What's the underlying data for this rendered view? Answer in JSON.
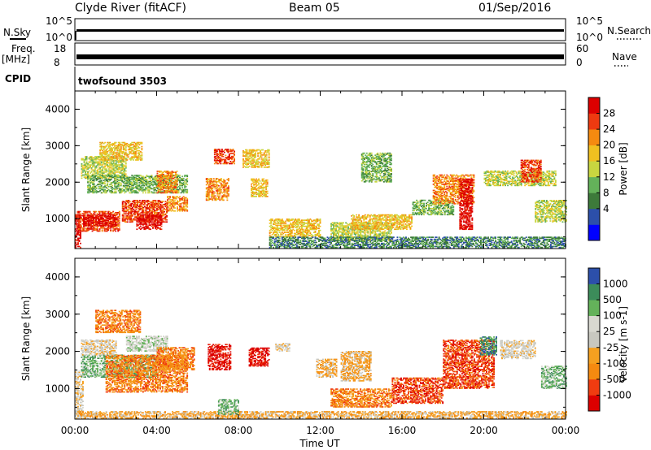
{
  "header": {
    "station": "Clyde River (fitACF)",
    "beam": "Beam 05",
    "date": "01/Sep/2016"
  },
  "top_strips": {
    "nsky_label": "N.Sky",
    "nsky_ticks": [
      "10^5",
      "10^0"
    ],
    "nsearch_label": "N.Search",
    "nsearch_ticks": [
      "10^5",
      "10^0"
    ],
    "freq_label": "Freq.",
    "freq_unit": "[MHz]",
    "freq_ticks": [
      "18",
      "8"
    ],
    "nave_label": "Nave",
    "nave_ticks": [
      "60",
      "0"
    ],
    "cpid_label": "CPID",
    "cpid_value": "twofsound 3503"
  },
  "colors": {
    "frame": "#000000",
    "trace": "#000000"
  },
  "chart_data": [
    {
      "type": "heatmap",
      "name": "power",
      "ylabel": "Slant Range [km]",
      "ylim": [
        180,
        4500
      ],
      "yticks": [
        1000,
        2000,
        3000,
        4000
      ],
      "xlim_hours": [
        0,
        24
      ],
      "colorbar": {
        "label": "Power [dB]",
        "ticks": [
          "28",
          "24",
          "20",
          "16",
          "12",
          "8",
          "4"
        ],
        "colors": [
          "#0000ff",
          "#2c4faa",
          "#3d7a3a",
          "#64b25a",
          "#c8d640",
          "#f0c020",
          "#f58a10",
          "#ee3a10",
          "#dc0000"
        ]
      },
      "regions": [
        {
          "t0": 0.0,
          "t1": 0.3,
          "r0": 200,
          "r1": 1100,
          "c": 8
        },
        {
          "t0": 0.1,
          "t1": 2.2,
          "r0": 650,
          "r1": 1200,
          "c": 7
        },
        {
          "t0": 0.4,
          "t1": 2.0,
          "r0": 800,
          "r1": 1100,
          "c": 8
        },
        {
          "t0": 2.3,
          "t1": 4.5,
          "r0": 900,
          "r1": 1500,
          "c": 7
        },
        {
          "t0": 3.0,
          "t1": 4.2,
          "r0": 700,
          "r1": 1100,
          "c": 8
        },
        {
          "t0": 4.5,
          "t1": 5.5,
          "r0": 1200,
          "r1": 1600,
          "c": 6
        },
        {
          "t0": 0.3,
          "t1": 2.5,
          "r0": 2100,
          "r1": 2700,
          "c": 4
        },
        {
          "t0": 1.2,
          "t1": 3.3,
          "r0": 2600,
          "r1": 3100,
          "c": 5
        },
        {
          "t0": 0.6,
          "t1": 5.5,
          "r0": 1700,
          "r1": 2200,
          "c": 3
        },
        {
          "t0": 4.0,
          "t1": 5.0,
          "r0": 1700,
          "r1": 2300,
          "c": 6
        },
        {
          "t0": 6.8,
          "t1": 7.8,
          "r0": 2500,
          "r1": 2900,
          "c": 7
        },
        {
          "t0": 6.4,
          "t1": 7.5,
          "r0": 1500,
          "r1": 2100,
          "c": 6
        },
        {
          "t0": 8.2,
          "t1": 9.5,
          "r0": 2400,
          "r1": 2900,
          "c": 5
        },
        {
          "t0": 8.6,
          "t1": 9.4,
          "r0": 1600,
          "r1": 2100,
          "c": 5
        },
        {
          "t0": 9.5,
          "t1": 12.0,
          "r0": 500,
          "r1": 1000,
          "c": 5
        },
        {
          "t0": 12.5,
          "t1": 15.5,
          "r0": 400,
          "r1": 900,
          "c": 4
        },
        {
          "t0": 13.5,
          "t1": 16.5,
          "r0": 700,
          "r1": 1100,
          "c": 5
        },
        {
          "t0": 16.5,
          "t1": 18.5,
          "r0": 1100,
          "r1": 1500,
          "c": 3
        },
        {
          "t0": 17.5,
          "t1": 19.5,
          "r0": 1400,
          "r1": 2200,
          "c": 6
        },
        {
          "t0": 18.8,
          "t1": 19.4,
          "r0": 700,
          "r1": 2100,
          "c": 8
        },
        {
          "t0": 20.0,
          "t1": 23.5,
          "r0": 1900,
          "r1": 2300,
          "c": 4
        },
        {
          "t0": 21.8,
          "t1": 22.8,
          "r0": 2000,
          "r1": 2600,
          "c": 7
        },
        {
          "t0": 22.5,
          "t1": 24.0,
          "r0": 900,
          "r1": 1500,
          "c": 4
        },
        {
          "t0": 9.5,
          "t1": 24.0,
          "r0": 200,
          "r1": 500,
          "c": 2
        },
        {
          "t0": 14.0,
          "t1": 15.5,
          "r0": 2000,
          "r1": 2800,
          "c": 3
        }
      ]
    },
    {
      "type": "heatmap",
      "name": "velocity",
      "ylabel": "Slant Range [km]",
      "ylim": [
        180,
        4500
      ],
      "yticks": [
        1000,
        2000,
        3000,
        4000
      ],
      "xlim_hours": [
        0,
        24
      ],
      "xticks": [
        "00:00",
        "04:00",
        "08:00",
        "12:00",
        "16:00",
        "20:00",
        "00:00"
      ],
      "xlabel": "Time UT",
      "colorbar": {
        "label": "Velocity [m s-1]",
        "ticks": [
          "1000",
          "500",
          "100",
          "25",
          "-25",
          "-100",
          "-500",
          "-1000"
        ],
        "colors": [
          "#dc0000",
          "#f03c10",
          "#f58a10",
          "#f5a020",
          "#c8c8c0",
          "#d8d8d0",
          "#64b25a",
          "#3c8c5a",
          "#2c4faa"
        ]
      },
      "regions": [
        {
          "t0": 0.0,
          "t1": 0.4,
          "r0": 200,
          "r1": 1500,
          "c": 4
        },
        {
          "t0": 0.3,
          "t1": 4.0,
          "r0": 1300,
          "r1": 1900,
          "c": 6
        },
        {
          "t0": 1.5,
          "t1": 5.5,
          "r0": 900,
          "r1": 1900,
          "c": 2
        },
        {
          "t0": 2.5,
          "t1": 4.5,
          "r0": 2000,
          "r1": 2400,
          "c": 5
        },
        {
          "t0": 0.3,
          "t1": 2.0,
          "r0": 1900,
          "r1": 2300,
          "c": 4
        },
        {
          "t0": 1.0,
          "t1": 3.2,
          "r0": 2500,
          "r1": 3100,
          "c": 2
        },
        {
          "t0": 4.0,
          "t1": 5.8,
          "r0": 1500,
          "r1": 2100,
          "c": 2
        },
        {
          "t0": 6.5,
          "t1": 7.6,
          "r0": 1500,
          "r1": 2200,
          "c": 0
        },
        {
          "t0": 8.5,
          "t1": 9.5,
          "r0": 1600,
          "r1": 2100,
          "c": 0
        },
        {
          "t0": 9.8,
          "t1": 10.5,
          "r0": 2000,
          "r1": 2200,
          "c": 4
        },
        {
          "t0": 11.8,
          "t1": 12.8,
          "r0": 1300,
          "r1": 1800,
          "c": 3
        },
        {
          "t0": 12.5,
          "t1": 15.5,
          "r0": 500,
          "r1": 1000,
          "c": 2
        },
        {
          "t0": 13.0,
          "t1": 14.5,
          "r0": 1200,
          "r1": 2000,
          "c": 3
        },
        {
          "t0": 15.5,
          "t1": 18.0,
          "r0": 600,
          "r1": 1300,
          "c": 1
        },
        {
          "t0": 18.0,
          "t1": 20.5,
          "r0": 1000,
          "r1": 2300,
          "c": 1
        },
        {
          "t0": 19.8,
          "t1": 20.6,
          "r0": 1900,
          "r1": 2400,
          "c": 7
        },
        {
          "t0": 20.8,
          "t1": 22.5,
          "r0": 1800,
          "r1": 2300,
          "c": 4
        },
        {
          "t0": 22.8,
          "t1": 24.0,
          "r0": 1000,
          "r1": 1600,
          "c": 6
        },
        {
          "t0": 0.0,
          "t1": 24.0,
          "r0": 200,
          "r1": 380,
          "c": 3
        },
        {
          "t0": 7.0,
          "t1": 8.0,
          "r0": 300,
          "r1": 700,
          "c": 6
        }
      ]
    }
  ]
}
